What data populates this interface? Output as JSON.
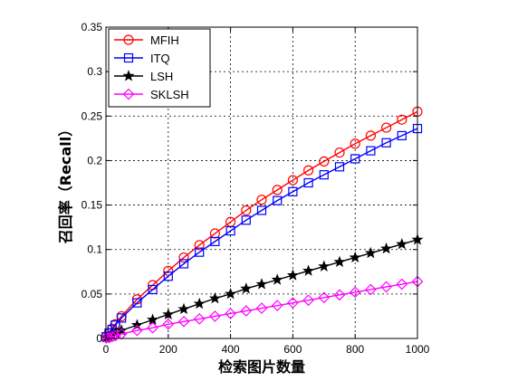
{
  "chart_data": {
    "type": "line",
    "title": "",
    "xlabel": "检索图片数量",
    "ylabel": "召回率（Recall）",
    "xlim": [
      0,
      1000
    ],
    "ylim": [
      0,
      0.35
    ],
    "grid": true,
    "legend_position": "top-left",
    "x_ticks": [
      0,
      200,
      400,
      600,
      800,
      1000
    ],
    "y_ticks": [
      0,
      0.05,
      0.1,
      0.15,
      0.2,
      0.25,
      0.3,
      0.35
    ],
    "x_tick_labels": [
      "0",
      "200",
      "400",
      "600",
      "800",
      "1000"
    ],
    "y_tick_labels": [
      "0",
      "0.05",
      "0.1",
      "0.15",
      "0.2",
      "0.25",
      "0.3",
      "0.35"
    ],
    "x": [
      1,
      10,
      20,
      30,
      50,
      100,
      150,
      200,
      250,
      300,
      350,
      400,
      450,
      500,
      550,
      600,
      650,
      700,
      750,
      800,
      850,
      900,
      950,
      1000
    ],
    "series": [
      {
        "name": "MFIH",
        "color": "#ff0000",
        "marker": "circle",
        "values": [
          0.002,
          0.006,
          0.011,
          0.016,
          0.025,
          0.044,
          0.06,
          0.076,
          0.091,
          0.105,
          0.118,
          0.131,
          0.144,
          0.156,
          0.167,
          0.178,
          0.189,
          0.199,
          0.209,
          0.219,
          0.228,
          0.237,
          0.246,
          0.255
        ]
      },
      {
        "name": "ITQ",
        "color": "#0000ff",
        "marker": "square",
        "values": [
          0.002,
          0.006,
          0.01,
          0.015,
          0.023,
          0.04,
          0.055,
          0.07,
          0.084,
          0.097,
          0.109,
          0.121,
          0.133,
          0.144,
          0.155,
          0.165,
          0.175,
          0.184,
          0.193,
          0.202,
          0.211,
          0.22,
          0.228,
          0.236
        ]
      },
      {
        "name": "LSH",
        "color": "#000000",
        "marker": "star",
        "values": [
          0.001,
          0.002,
          0.004,
          0.006,
          0.009,
          0.015,
          0.021,
          0.027,
          0.033,
          0.039,
          0.045,
          0.05,
          0.056,
          0.061,
          0.066,
          0.071,
          0.076,
          0.081,
          0.086,
          0.091,
          0.096,
          0.101,
          0.106,
          0.111
        ]
      },
      {
        "name": "SKLSH",
        "color": "#ff00ff",
        "marker": "diamond",
        "values": [
          0.0005,
          0.001,
          0.002,
          0.003,
          0.005,
          0.009,
          0.012,
          0.016,
          0.019,
          0.022,
          0.025,
          0.028,
          0.031,
          0.034,
          0.037,
          0.04,
          0.043,
          0.046,
          0.049,
          0.052,
          0.055,
          0.058,
          0.061,
          0.064
        ]
      }
    ]
  }
}
